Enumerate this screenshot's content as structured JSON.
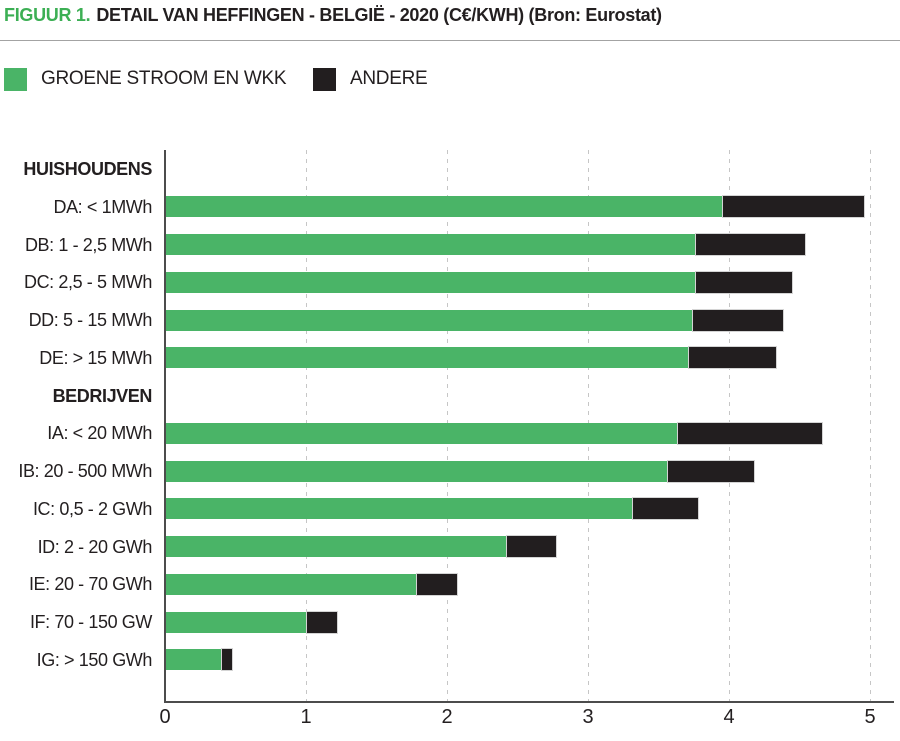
{
  "figure": {
    "title_prefix": "FIGUUR 1.",
    "title_main": "DETAIL VAN HEFFINGEN - BELGIË - 2020 (C€/KWH) (Bron: Eurostat)"
  },
  "legend": {
    "groene": "GROENE STROOM EN WKK",
    "andere": "ANDERE"
  },
  "colors": {
    "accent_green": "#3caf54",
    "bar_green": "#4ab467",
    "bar_black": "#221e1f",
    "text": "#231f20",
    "gridline": "#c6c6c6",
    "axis": "#4c4c4c",
    "divider": "#a3a3a3"
  },
  "chart_data": {
    "type": "bar",
    "orientation": "horizontal",
    "stacked": true,
    "title": "FIGUUR 1. DETAIL VAN HEFFINGEN - BELGIË - 2020 (C€/KWH) (Bron: Eurostat)",
    "source": "Bron: Eurostat",
    "unit": "C€/KWH",
    "xlim": [
      0,
      5
    ],
    "xticks": [
      0,
      1,
      2,
      3,
      4,
      5
    ],
    "grid": "vertical-dashed",
    "legend_position": "top",
    "series_names": [
      "GROENE STROOM EN WKK",
      "ANDERE"
    ],
    "rows": [
      {
        "label": "HUISHOUDENS",
        "header": true
      },
      {
        "label": "DA: < 1MWh",
        "groene": 3.95,
        "andere": 1.0
      },
      {
        "label": "DB: 1 - 2,5 MWh",
        "groene": 3.76,
        "andere": 0.77
      },
      {
        "label": "DC: 2,5 - 5 MWh",
        "groene": 3.76,
        "andere": 0.68
      },
      {
        "label": "DD: 5 - 15 MWh",
        "groene": 3.74,
        "andere": 0.64
      },
      {
        "label": "DE: > 15 MWh",
        "groene": 3.71,
        "andere": 0.62
      },
      {
        "label": "BEDRIJVEN",
        "header": true
      },
      {
        "label": "IA: < 20 MWh",
        "groene": 3.63,
        "andere": 1.02
      },
      {
        "label": "IB: 20 - 500 MWh",
        "groene": 3.56,
        "andere": 0.61
      },
      {
        "label": "IC: 0,5 - 2 GWh",
        "groene": 3.31,
        "andere": 0.46
      },
      {
        "label": "ID: 2 - 20 GWh",
        "groene": 2.42,
        "andere": 0.35
      },
      {
        "label": "IE: 20 - 70 GWh",
        "groene": 1.78,
        "andere": 0.28
      },
      {
        "label": "IF: 70 - 150 GW",
        "groene": 1.0,
        "andere": 0.21
      },
      {
        "label": "IG: > 150 GWh",
        "groene": 0.4,
        "andere": 0.07
      }
    ]
  }
}
